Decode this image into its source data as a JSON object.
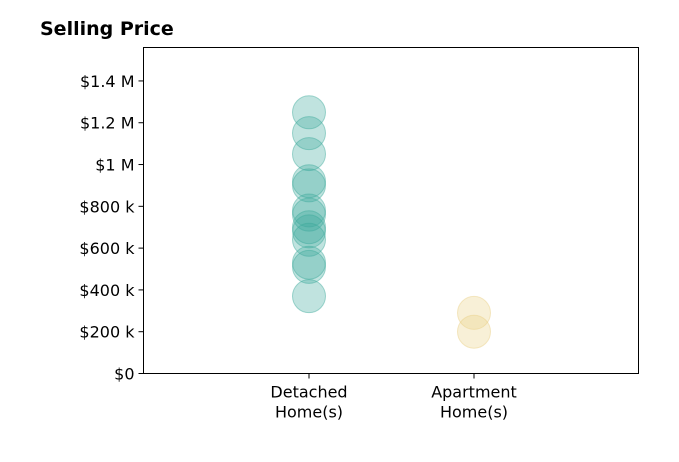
{
  "title": "Selling Price",
  "chart_data": {
    "type": "scatter",
    "title": "Selling Price",
    "xlabel": "",
    "ylabel": "",
    "categories": [
      [
        "Detached",
        "Home(s)"
      ],
      [
        "Apartment",
        "Home(s)"
      ]
    ],
    "ylim": [
      0,
      1560000
    ],
    "yticks": [
      0,
      200000,
      400000,
      600000,
      800000,
      1000000,
      1200000,
      1400000
    ],
    "ytick_labels": [
      "$0",
      "$200 k",
      "$400 k",
      "$600 k",
      "$800 k",
      "$1 M",
      "$1.2 M",
      "$1.4 M"
    ],
    "grid": false,
    "series": [
      {
        "category_index": 0,
        "color": "#3aa89a",
        "values": [
          1250000,
          1150000,
          1050000,
          920000,
          900000,
          780000,
          760000,
          700000,
          680000,
          640000,
          530000,
          510000,
          370000
        ]
      },
      {
        "category_index": 1,
        "color": "#e8cf82",
        "values": [
          290000,
          200000
        ]
      }
    ]
  }
}
